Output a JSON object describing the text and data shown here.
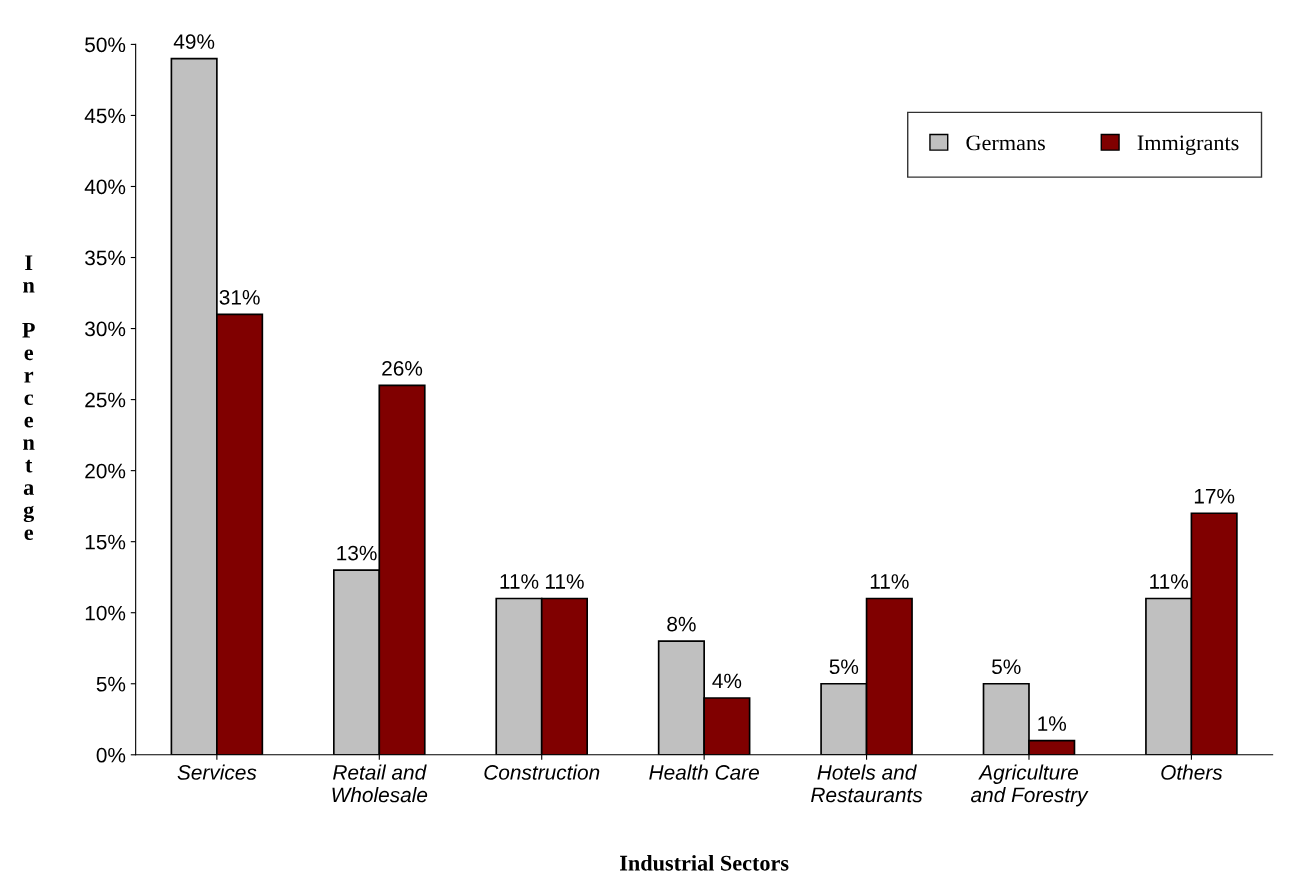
{
  "chart_data": {
    "type": "bar",
    "xlabel": "Industrial Sectors",
    "ylabel": "In Percentage",
    "categories": [
      "Services",
      "Retail and\nWholesale",
      "Construction",
      "Health Care",
      "Hotels and\nRestaurants",
      "Agriculture\nand Forestry",
      "Others"
    ],
    "series": [
      {
        "name": "Germans",
        "color": "#c0c0c0",
        "values": [
          49,
          13,
          11,
          8,
          5,
          5,
          11
        ],
        "value_labels": [
          "49%",
          "13%",
          "11%",
          "8%",
          "5%",
          "5%",
          "11%"
        ]
      },
      {
        "name": "Immigrants",
        "color": "#800000",
        "values": [
          31,
          26,
          11,
          4,
          11,
          1,
          17
        ],
        "value_labels": [
          "31%",
          "26%",
          "11%",
          "4%",
          "11%",
          "1%",
          "17%"
        ]
      }
    ],
    "ylim": [
      0,
      50
    ],
    "yticks": [
      {
        "value": 0,
        "label": "0%"
      },
      {
        "value": 5,
        "label": "5%"
      },
      {
        "value": 10,
        "label": "10%"
      },
      {
        "value": 15,
        "label": "15%"
      },
      {
        "value": 20,
        "label": "20%"
      },
      {
        "value": 25,
        "label": "25%"
      },
      {
        "value": 30,
        "label": "30%"
      },
      {
        "value": 35,
        "label": "35%"
      },
      {
        "value": 40,
        "label": "40%"
      },
      {
        "value": 45,
        "label": "45%"
      },
      {
        "value": 50,
        "label": "50%"
      }
    ],
    "grid": false,
    "legend": "top right"
  }
}
